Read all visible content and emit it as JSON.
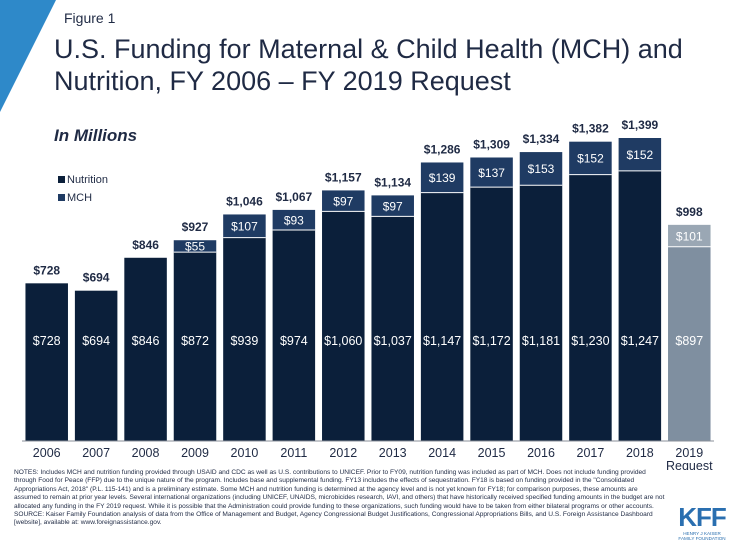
{
  "figure_label": "Figure 1",
  "title": "U.S. Funding for Maternal & Child Health (MCH) and Nutrition, FY 2006 – FY 2019 Request",
  "subtitle": "In Millions",
  "colors": {
    "corner_accent": "#2e89c9",
    "nutrition": "#0b1f3a",
    "mch": "#1f3b63",
    "request_nutrition": "#7f8fa0",
    "request_mch": "#9aa7b4",
    "text": "#1f2a44",
    "logo": "#2a6fb0"
  },
  "chart_data": {
    "type": "bar",
    "stacked": true,
    "categories": [
      "2006",
      "2007",
      "2008",
      "2009",
      "2010",
      "2011",
      "2012",
      "2013",
      "2014",
      "2015",
      "2016",
      "2017",
      "2018",
      "2019 Request"
    ],
    "series": [
      {
        "name": "MCH",
        "values": [
          728,
          694,
          846,
          872,
          939,
          974,
          1060,
          1037,
          1147,
          1172,
          1181,
          1230,
          1247,
          897
        ]
      },
      {
        "name": "Nutrition",
        "values": [
          null,
          null,
          null,
          55,
          107,
          93,
          97,
          97,
          139,
          137,
          153,
          152,
          152,
          101
        ]
      }
    ],
    "segment_labels": {
      "MCH": [
        "$728",
        "$694",
        "$846",
        "$872",
        "$939",
        "$974",
        "$1,060",
        "$1,037",
        "$1,147",
        "$1,172",
        "$1,181",
        "$1,230",
        "$1,247",
        "$897"
      ],
      "Nutrition": [
        "",
        "",
        "",
        "$55",
        "$107",
        "$93",
        "$97",
        "$97",
        "$139",
        "$137",
        "$153",
        "$152",
        "$152",
        "$101"
      ]
    },
    "totals": [
      728,
      694,
      846,
      927,
      1046,
      1067,
      1157,
      1134,
      1286,
      1309,
      1334,
      1382,
      1399,
      998
    ],
    "total_labels": [
      "$728",
      "$694",
      "$846",
      "$927",
      "$1,046",
      "$1,067",
      "$1,157",
      "$1,134",
      "$1,286",
      "$1,309",
      "$1,334",
      "$1,382",
      "$1,399",
      "$998"
    ],
    "legend": [
      "Nutrition",
      "MCH"
    ],
    "legend_position": "top-left",
    "ylim": [
      0,
      1500
    ],
    "grid": false,
    "highlighted_category": "2019 Request"
  },
  "notes": [
    "NOTES: Includes MCH and nutrition funding provided through USAID and CDC as well as U.S. contributions to UNICEF. Prior to FY09, nutrition funding was included as part of MCH. Does not include funding provided through Food for Peace (FFP) due to the unique nature of the program. Includes base and supplemental funding. FY13 includes the effects of sequestration. FY18 is based on funding provided in the \"Consolidated Appropriations Act, 2018\" (P.L. 115-141) and is a preliminary estimate. Some MCH and nutrition funding is determined at the agency level and is not yet known for FY18; for comparison purposes, these amounts are assumed to remain at prior year levels. Several international organizations (including UNICEF, UNAIDS, microbicides research, IAVI, and others) that have historically received specified funding amounts in the budget are not allocated any funding in the FY 2019 request. While it is possible that the Administration could provide funding to these organizations, such funding would have to be taken from either bilateral programs or other accounts.",
    "SOURCE: Kaiser Family Foundation analysis of data from the Office of Management and Budget, Agency Congressional Budget Justifications, Congressional Appropriations Bills, and U.S. Foreign Assistance Dashboard [website], available at: www.foreignassistance.gov."
  ],
  "logo": {
    "mark": "KFF",
    "subtext": "HENRY J KAISER\nFAMILY FOUNDATION"
  }
}
